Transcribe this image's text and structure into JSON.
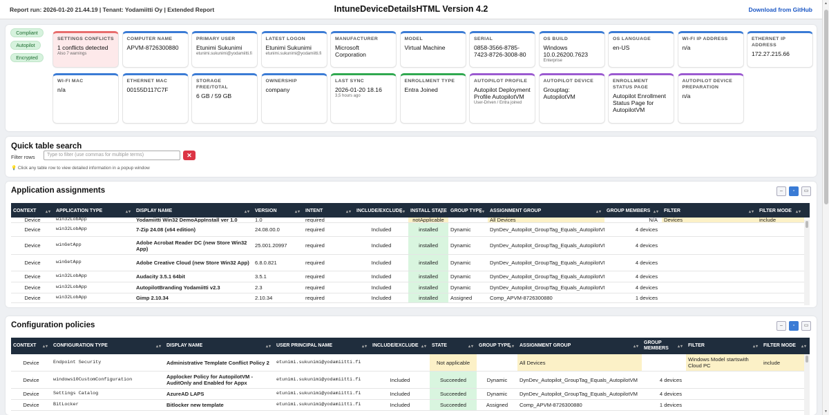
{
  "header": {
    "report_run": "Report run: 2026-01-20 21.44.19 | Tenant: Yodamiitti Oy | Extended Report",
    "title": "IntuneDeviceDetailsHTML Version 4.2",
    "download": "Download from GitHub"
  },
  "badges": [
    "Compliant",
    "Autopilot",
    "Encrypted"
  ],
  "cards": [
    {
      "label": "SETTINGS CONFLICTS",
      "value": "1 conflicts detected",
      "sub": "Also 7 warnings",
      "color": "#e86d6d"
    },
    {
      "label": "COMPUTER NAME",
      "value": "APVM-8726300880",
      "sub": ""
    },
    {
      "label": "PRIMARY USER",
      "value": "Etunimi Sukunimi",
      "sub": "etunimi.sukunimi@yodamiitti.fi"
    },
    {
      "label": "LATEST LOGON",
      "value": "Etunimi Sukunimi",
      "sub": "etunimi.sukunimi@yodamiitti.fi"
    },
    {
      "label": "MANUFACTURER",
      "value": "Microsoft Corporation",
      "sub": ""
    },
    {
      "label": "MODEL",
      "value": "Virtual Machine",
      "sub": ""
    },
    {
      "label": "SERIAL",
      "value": "0858-3566-8785-7423-8726-3008-80",
      "sub": ""
    },
    {
      "label": "OS BUILD",
      "value": "Windows 10.0.26200.7623",
      "sub": "Enterprise"
    },
    {
      "label": "OS LANGUAGE",
      "value": "en-US",
      "sub": ""
    },
    {
      "label": "WI-FI IP ADDRESS",
      "value": "n/a",
      "sub": ""
    },
    {
      "label": "ETHERNET IP ADDRESS",
      "value": "172.27.215.66",
      "sub": ""
    },
    {
      "label": "WI-FI MAC",
      "value": "n/a",
      "sub": ""
    },
    {
      "label": "ETHERNET MAC",
      "value": "00155D117C7F",
      "sub": ""
    },
    {
      "label": "STORAGE FREE/TOTAL",
      "value": "6 GB / 59 GB",
      "sub": ""
    },
    {
      "label": "OWNERSHIP",
      "value": "company",
      "sub": ""
    },
    {
      "label": "LAST SYNC",
      "value": "2026-01-20 18.16",
      "sub": "3,5 hours ago"
    },
    {
      "label": "ENROLLMENT TYPE",
      "value": "Entra Joined",
      "sub": ""
    },
    {
      "label": "AUTOPILOT PROFILE",
      "value": "Autopilot Deployment Profile AutopilotVM",
      "sub": "User-Driven / Entra joined"
    },
    {
      "label": "AUTOPILOT DEVICE",
      "value": "Grouptag: AutopilotVM",
      "sub": ""
    },
    {
      "label": "ENROLLMENT STATUS PAGE",
      "value": "Autopilot Enrollment Status Page for AutopilotVM",
      "sub": ""
    },
    {
      "label": "AUTOPILOT DEVICE PREPARATION",
      "value": "n/a",
      "sub": ""
    }
  ],
  "search": {
    "title": "Quick table search",
    "filter_label": "Filter rows",
    "placeholder": "Type to filter (use commas for multiple terms)",
    "clear": "✕",
    "hint": "💡 Click any table row to view detailed information in a popup window"
  },
  "apps": {
    "title": "Application assignments",
    "columns": [
      "CONTEXT",
      "APPLICATION TYPE",
      "DISPLAY NAME",
      "VERSION",
      "INTENT",
      "INCLUDE/EXCLUDE",
      "INSTALL STATE",
      "GROUP TYPE",
      "ASSIGNMENT GROUP",
      "GROUP MEMBERS",
      "FILTER",
      "FILTER MODE"
    ],
    "rows": [
      [
        "Device",
        "win32LobApp",
        "Yodamiitti Win32 DemoAppInstall ver 1.0",
        "1.0",
        "required",
        "",
        "notApplicable",
        "",
        "All Devices",
        "N/A",
        "Devices",
        "include"
      ],
      [
        "Device",
        "win32LobApp",
        "7-Zip 24.08 (x64 edition)",
        "24.08.00.0",
        "required",
        "Included",
        "installed",
        "Dynamic",
        "DynDev_Autopilot_GroupTag_Equals_AutopilotVM",
        "4 devices",
        "",
        ""
      ],
      [
        "Device",
        "winGetApp",
        "Adobe Acrobat Reader DC (new Store Win32 App)",
        "25.001.20997",
        "required",
        "Included",
        "installed",
        "Dynamic",
        "DynDev_Autopilot_GroupTag_Equals_AutopilotVM",
        "4 devices",
        "",
        ""
      ],
      [
        "Device",
        "winGetApp",
        "Adobe Creative Cloud (new Store Win32 App)",
        "6.8.0.821",
        "required",
        "Included",
        "installed",
        "Dynamic",
        "DynDev_Autopilot_GroupTag_Equals_AutopilotVM",
        "4 devices",
        "",
        ""
      ],
      [
        "Device",
        "win32LobApp",
        "Audacity 3.5.1 64bit",
        "3.5.1",
        "required",
        "Included",
        "installed",
        "Dynamic",
        "DynDev_Autopilot_GroupTag_Equals_AutopilotVM",
        "4 devices",
        "",
        ""
      ],
      [
        "Device",
        "win32LobApp",
        "AutopilotBranding Yodamiitti v2.3",
        "2.3",
        "required",
        "Included",
        "installed",
        "Dynamic",
        "DynDev_Autopilot_GroupTag_Equals_AutopilotVM",
        "4 devices",
        "",
        ""
      ],
      [
        "Device",
        "win32LobApp",
        "Gimp 2.10.34",
        "2.10.34",
        "required",
        "Included",
        "installed",
        "Assigned",
        "Comp_APVM-8726300880",
        "1 devices",
        "",
        ""
      ]
    ]
  },
  "cfg": {
    "title": "Configuration policies",
    "columns": [
      "CONTEXT",
      "CONFIGURATION TYPE",
      "DISPLAY NAME",
      "USER PRINCIPAL NAME",
      "INCLUDE/EXCLUDE",
      "STATE",
      "GROUP TYPE",
      "ASSIGNMENT GROUP",
      "GROUP MEMBERS",
      "FILTER",
      "FILTER MODE"
    ],
    "rows": [
      [
        "Device",
        "Endpoint Security",
        "Administrative Template Conflict Policy 2",
        "etunimi.sukunimi@yodamiitti.fi",
        "",
        "Not applicable",
        "",
        "All Devices",
        "",
        "Windows Model startswith Cloud PC",
        "include"
      ],
      [
        "Device",
        "windows10CustomConfiguration",
        "Applocker Policy for AutopilotVM - AuditOnly and Enabled for Appx",
        "etunimi.sukunimi@yodamiitti.fi",
        "Included",
        "Succeeded",
        "Dynamic",
        "DynDev_Autopilot_GroupTag_Equals_AutopilotVM",
        "4 devices",
        "",
        ""
      ],
      [
        "Device",
        "Settings Catalog",
        "AzureAD LAPS",
        "etunimi.sukunimi@yodamiitti.fi",
        "Included",
        "Succeeded",
        "Dynamic",
        "DynDev_Autopilot_GroupTag_Equals_AutopilotVM",
        "4 devices",
        "",
        ""
      ],
      [
        "Device",
        "BitLocker",
        "Bitlocker new template",
        "etunimi.sukunimi@yodamiitti.fi",
        "Included",
        "Succeeded",
        "Assigned",
        "Comp_APVM-8726300880",
        "1 devices",
        "",
        ""
      ]
    ]
  },
  "colors": {
    "header": "#1f2d3d",
    "success": "#d9f5df",
    "warning": "#fcf1c7",
    "link": "#1a56c4",
    "danger": "#dc3545"
  }
}
